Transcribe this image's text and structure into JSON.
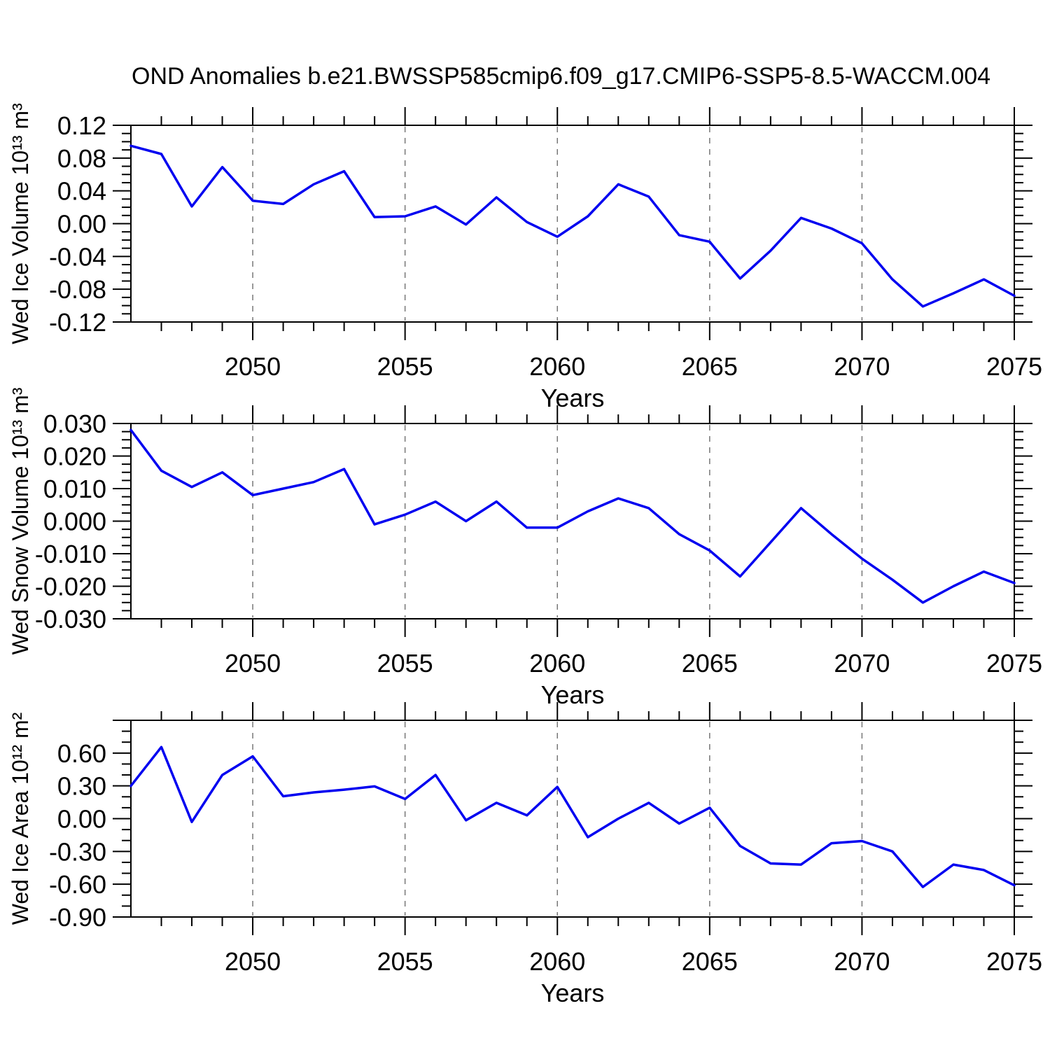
{
  "title": "OND Anomalies b.e21.BWSSP585cmip6.f09_g17.CMIP6-SSP5-8.5-WACCM.004",
  "colors": {
    "line": "#0000f0",
    "grid": "#777777",
    "axis": "#000000",
    "background": "#ffffff"
  },
  "chart_data": [
    {
      "type": "line",
      "name": "wed-ice-volume",
      "ylabel": "Wed Ice Volume 10¹³ m³",
      "xlabel": "Years",
      "xlim": [
        2046,
        2075
      ],
      "ylim": [
        -0.12,
        0.12
      ],
      "xticks": [
        2050,
        2055,
        2060,
        2065,
        2070,
        2075
      ],
      "grid_years": [
        2050,
        2055,
        2060,
        2065,
        2070
      ],
      "yticks": [
        0.12,
        0.08,
        0.04,
        0.0,
        -0.04,
        -0.08,
        -0.12
      ],
      "ytick_labels": [
        "0.12",
        "0.08",
        "0.04",
        "0.00",
        "-0.04",
        "-0.08",
        "-0.12"
      ],
      "y_minor_step": 0.01,
      "years": [
        2046,
        2047,
        2048,
        2049,
        2050,
        2051,
        2052,
        2053,
        2054,
        2055,
        2056,
        2057,
        2058,
        2059,
        2060,
        2061,
        2062,
        2063,
        2064,
        2065,
        2066,
        2067,
        2068,
        2069,
        2070,
        2071,
        2072,
        2073,
        2074,
        2075
      ],
      "values": [
        0.095,
        0.085,
        0.021,
        0.069,
        0.028,
        0.024,
        0.048,
        0.064,
        0.008,
        0.009,
        0.021,
        -0.001,
        0.032,
        0.002,
        -0.016,
        0.009,
        0.048,
        0.033,
        -0.014,
        -0.022,
        -0.067,
        -0.033,
        0.007,
        -0.006,
        -0.024,
        -0.068,
        -0.101,
        -0.085,
        -0.068,
        -0.088
      ]
    },
    {
      "type": "line",
      "name": "wed-snow-volume",
      "ylabel": "Wed Snow Volume 10¹³ m³",
      "xlabel": "Years",
      "xlim": [
        2046,
        2075
      ],
      "ylim": [
        -0.03,
        0.03
      ],
      "xticks": [
        2050,
        2055,
        2060,
        2065,
        2070,
        2075
      ],
      "grid_years": [
        2050,
        2055,
        2060,
        2065,
        2070
      ],
      "yticks": [
        0.03,
        0.02,
        0.01,
        0.0,
        -0.01,
        -0.02,
        -0.03
      ],
      "ytick_labels": [
        "0.030",
        "0.020",
        "0.010",
        "0.000",
        "-0.010",
        "-0.020",
        "-0.030"
      ],
      "y_minor_step": 0.0025,
      "years": [
        2046,
        2047,
        2048,
        2049,
        2050,
        2051,
        2052,
        2053,
        2054,
        2055,
        2056,
        2057,
        2058,
        2059,
        2060,
        2061,
        2062,
        2063,
        2064,
        2065,
        2066,
        2067,
        2068,
        2069,
        2070,
        2071,
        2072,
        2073,
        2074,
        2075
      ],
      "values": [
        0.028,
        0.0155,
        0.0105,
        0.015,
        0.008,
        0.01,
        0.012,
        0.016,
        -0.001,
        0.002,
        0.006,
        0.0,
        0.006,
        -0.002,
        -0.002,
        0.003,
        0.007,
        0.004,
        -0.004,
        -0.009,
        -0.017,
        -0.0065,
        0.004,
        -0.004,
        -0.0115,
        -0.018,
        -0.025,
        -0.02,
        -0.0155,
        -0.019
      ]
    },
    {
      "type": "line",
      "name": "wed-ice-area",
      "ylabel": "Wed Ice Area 10¹² m²",
      "xlabel": "Years",
      "xlim": [
        2046,
        2075
      ],
      "ylim": [
        -0.9,
        0.9
      ],
      "xticks": [
        2050,
        2055,
        2060,
        2065,
        2070,
        2075
      ],
      "grid_years": [
        2050,
        2055,
        2060,
        2065,
        2070
      ],
      "yticks": [
        0.9,
        0.6,
        0.3,
        0.0,
        -0.3,
        -0.6,
        -0.9
      ],
      "ytick_labels": [
        "",
        "0.60",
        "0.30",
        "0.00",
        "-0.30",
        "-0.60",
        "-0.90"
      ],
      "y_minor_step": 0.1,
      "years": [
        2046,
        2047,
        2048,
        2049,
        2050,
        2051,
        2052,
        2053,
        2054,
        2055,
        2056,
        2057,
        2058,
        2059,
        2060,
        2061,
        2062,
        2063,
        2064,
        2065,
        2066,
        2067,
        2068,
        2069,
        2070,
        2071,
        2072,
        2073,
        2074,
        2075
      ],
      "values": [
        0.3,
        0.655,
        -0.03,
        0.4,
        0.57,
        0.205,
        0.24,
        0.265,
        0.295,
        0.18,
        0.4,
        -0.015,
        0.145,
        0.03,
        0.29,
        -0.17,
        0.0,
        0.145,
        -0.045,
        0.1,
        -0.25,
        -0.41,
        -0.42,
        -0.225,
        -0.205,
        -0.3,
        -0.625,
        -0.42,
        -0.47,
        -0.61
      ]
    }
  ]
}
